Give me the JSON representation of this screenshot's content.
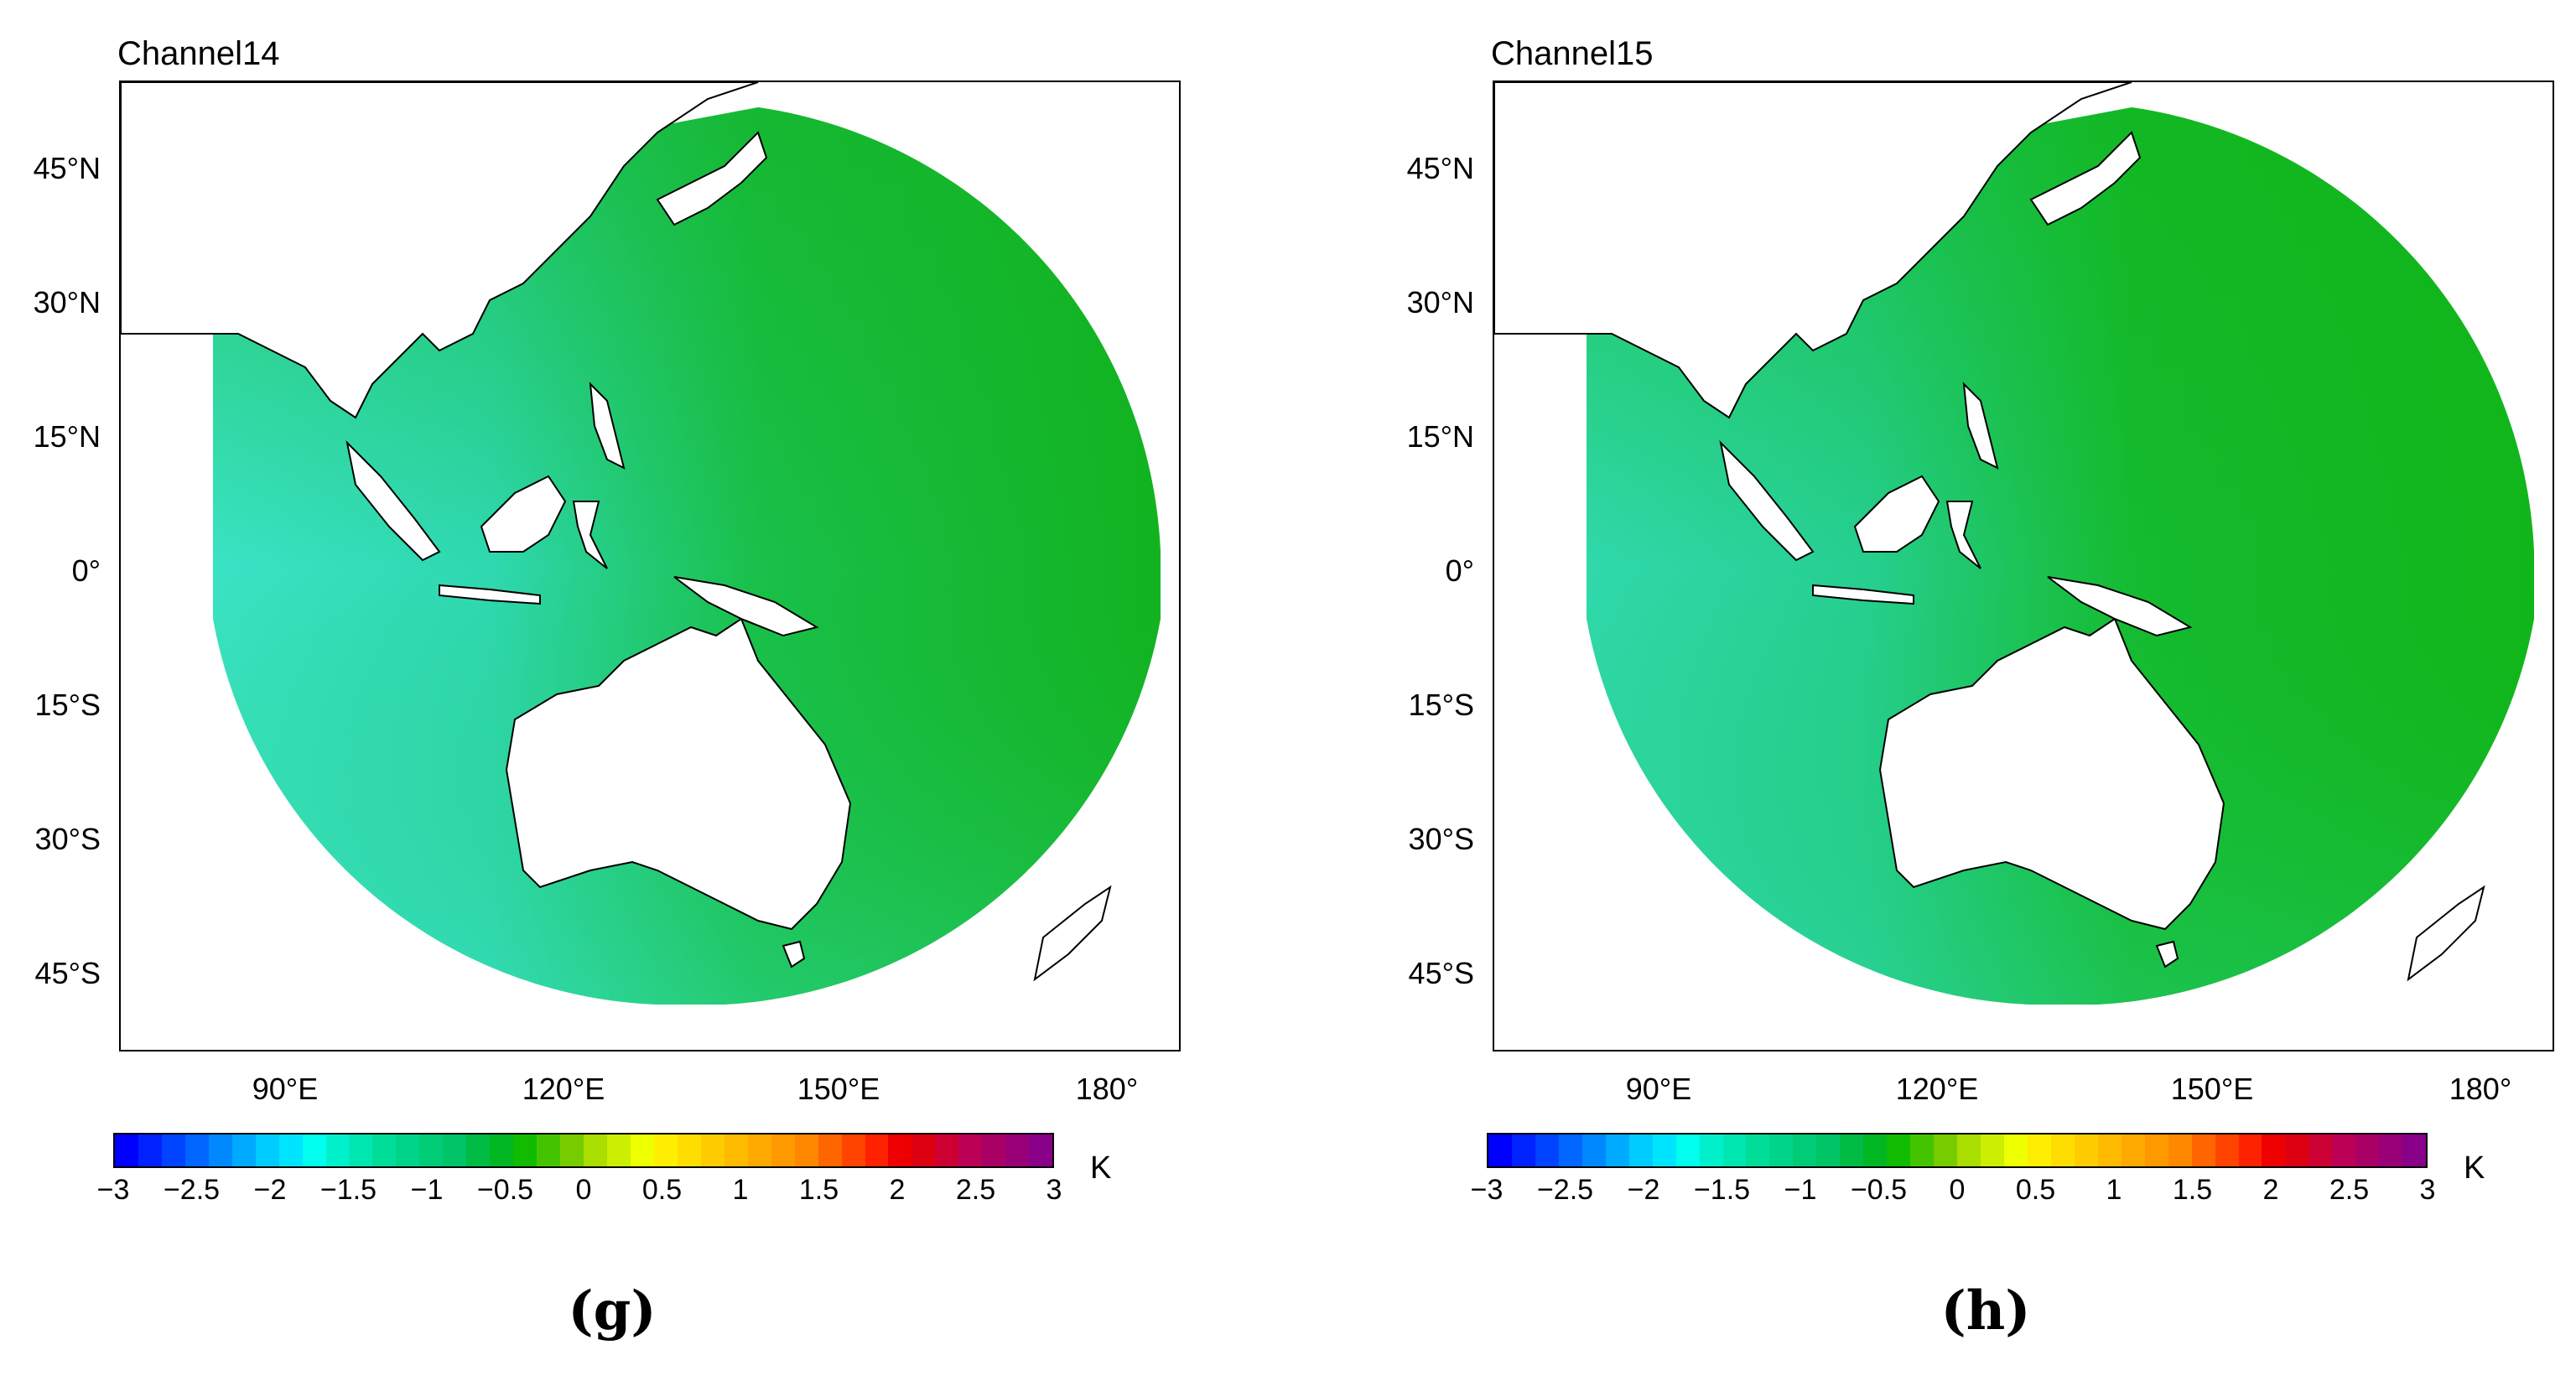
{
  "panels": [
    {
      "title": "Channel14",
      "letter": "(g)"
    },
    {
      "title": "Channel15",
      "letter": "(h)"
    }
  ],
  "lat_labels": [
    "45°N",
    "30°N",
    "15°N",
    "0°",
    "15°S",
    "30°S",
    "45°S"
  ],
  "lon_labels": [
    "90°E",
    "120°E",
    "150°E",
    "180°"
  ],
  "colorbar": {
    "labels": [
      "−3",
      "−2.5",
      "−2",
      "−1.5",
      "−1",
      "−0.5",
      "0",
      "0.5",
      "1",
      "1.5",
      "2",
      "2.5",
      "3"
    ],
    "unit": "K",
    "colors": [
      "#0000ff",
      "#0022ff",
      "#0044ff",
      "#0066ff",
      "#0088ff",
      "#00aaff",
      "#00ccff",
      "#00e5ff",
      "#00ffee",
      "#00f0cc",
      "#00e6b0",
      "#00dd99",
      "#00d488",
      "#00cc77",
      "#00c466",
      "#00bb44",
      "#00b722",
      "#11bb00",
      "#44c400",
      "#77cc00",
      "#aadd00",
      "#ccee00",
      "#eeff00",
      "#ffee00",
      "#ffdd00",
      "#ffcc00",
      "#ffbb00",
      "#ffaa00",
      "#ff9900",
      "#ff8800",
      "#ff6600",
      "#ff4400",
      "#ff2200",
      "#ee0000",
      "#dd0011",
      "#cc0033",
      "#bb0055",
      "#aa0066",
      "#990077",
      "#880088"
    ],
    "colors_note_hidden": ""
  },
  "colors": {
    "ocean_ch14_dark": "#15b015",
    "ocean_ch14_light": "#33e0c4",
    "ocean_ch15_dark": "#10b518",
    "ocean_ch15_light": "#2fdcb0",
    "land": "#ffffff",
    "coast": "#000000"
  }
}
